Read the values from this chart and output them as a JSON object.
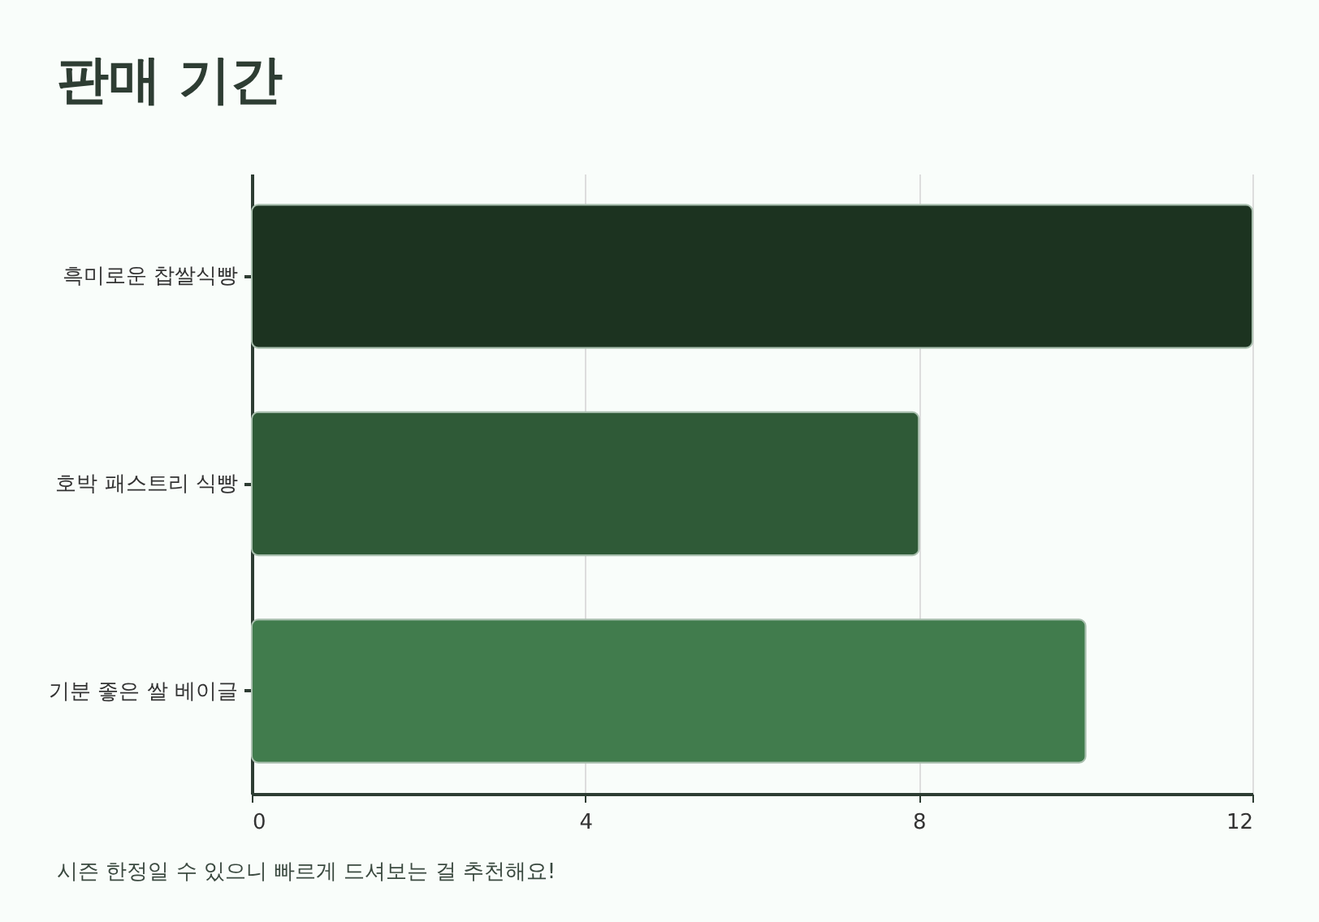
{
  "chart_data": {
    "type": "bar",
    "orientation": "horizontal",
    "title": "판매 기간",
    "categories": [
      "흑미로운 찹쌀식빵",
      "호박 패스트리 식빵",
      "기분 좋은 쌀 베이글"
    ],
    "values": [
      12,
      8,
      10
    ],
    "colors": [
      "#1c3320",
      "#2f5a37",
      "#417c4d"
    ],
    "xlim": [
      0,
      12
    ],
    "xticks": [
      0,
      4,
      8,
      12
    ],
    "grid": "x",
    "annotations": [
      "시즌 한정일 수 있으니 빠르게 드셔보는 걸 추천해요!"
    ]
  }
}
